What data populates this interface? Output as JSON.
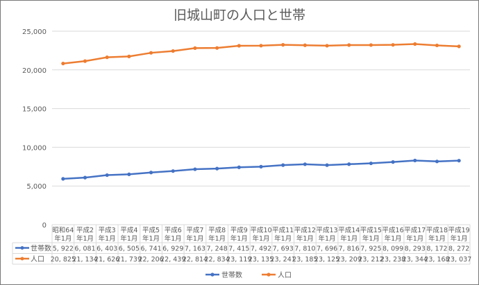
{
  "chart_data": {
    "type": "line",
    "title": "旧城山町の人口と世帯",
    "categories": [
      "昭和64\n年1月",
      "平成2\n年1月",
      "平成3\n年1月",
      "平成4\n年1月",
      "平成5\n年1月",
      "平成6\n年1月",
      "平成7\n年1月",
      "平成8\n年1月",
      "平成9\n年1月",
      "平成10\n年1月",
      "平成11\n年1月",
      "平成12\n年1月",
      "平成13\n年1月",
      "平成14\n年1月",
      "平成15\n年1月",
      "平成16\n年1月",
      "平成17\n年1月",
      "平成18\n年1月",
      "平成19\n年1月"
    ],
    "series": [
      {
        "name": "世帯数",
        "color": "#4472C4",
        "values": [
          5922,
          6081,
          6403,
          6505,
          6741,
          6929,
          7163,
          7248,
          7415,
          7492,
          7693,
          7810,
          7696,
          7816,
          7925,
          8099,
          8293,
          8172,
          8272
        ]
      },
      {
        "name": "人口",
        "color": "#ED7D31",
        "values": [
          20825,
          21134,
          21626,
          21739,
          22206,
          22439,
          22814,
          22834,
          23119,
          23135,
          23241,
          23185,
          23125,
          23209,
          23212,
          23238,
          23344,
          23168,
          23037
        ]
      }
    ],
    "ylim": [
      0,
      25000
    ],
    "yticks": [
      "0",
      "5,000",
      "10,000",
      "15,000",
      "20,000",
      "25,000"
    ],
    "grid": true,
    "legend": "bottom",
    "data_table": true
  }
}
